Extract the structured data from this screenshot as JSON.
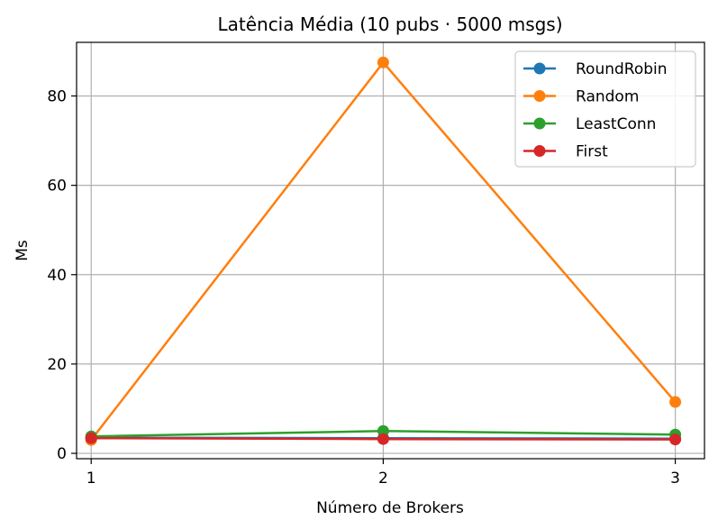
{
  "chart_data": {
    "type": "line",
    "title": "Latência Média (10 pubs · 5000 msgs)",
    "xlabel": "Número de Brokers",
    "ylabel": "Ms",
    "x": [
      1,
      2,
      3
    ],
    "x_ticks": [
      "1",
      "2",
      "3"
    ],
    "y_ticks": [
      "0",
      "20",
      "40",
      "60",
      "80"
    ],
    "xlim": [
      0.95,
      3.1
    ],
    "ylim": [
      -1.2,
      92
    ],
    "grid": true,
    "legend_position": "top-right",
    "series": [
      {
        "name": "RoundRobin",
        "color": "#1f77b4",
        "values": [
          3.5,
          3.4,
          3.3
        ]
      },
      {
        "name": "Random",
        "color": "#ff7f0e",
        "values": [
          3.0,
          87.5,
          11.5
        ]
      },
      {
        "name": "LeastConn",
        "color": "#2ca02c",
        "values": [
          3.8,
          5.0,
          4.2
        ]
      },
      {
        "name": "First",
        "color": "#d62728",
        "values": [
          3.4,
          3.2,
          3.1
        ]
      }
    ]
  }
}
